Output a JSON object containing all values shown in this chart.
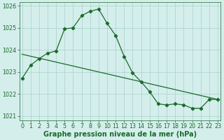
{
  "line1_x": [
    0,
    1,
    2,
    3,
    4,
    5,
    6,
    7,
    8,
    9,
    10,
    11,
    12,
    13,
    14,
    15,
    16,
    17,
    18,
    19,
    20,
    21,
    22,
    23
  ],
  "line1_y": [
    1022.7,
    1023.3,
    1023.6,
    1023.85,
    1023.95,
    1024.95,
    1025.0,
    1025.55,
    1025.75,
    1025.85,
    1025.2,
    1024.65,
    1023.7,
    1022.95,
    1022.55,
    1022.1,
    1021.55,
    1021.5,
    1021.55,
    1021.5,
    1021.35,
    1021.35,
    1021.75,
    1021.75
  ],
  "line2_x": [
    0,
    23
  ],
  "line2_y": [
    1023.8,
    1021.75
  ],
  "bg_color": "#d4eeec",
  "grid_color": "#b0d4d2",
  "line_color": "#1a6b2a",
  "xlabel": "Graphe pression niveau de la mer (hPa)",
  "xlim": [
    -0.3,
    23.3
  ],
  "ylim": [
    1020.8,
    1026.15
  ],
  "yticks": [
    1021,
    1022,
    1023,
    1024,
    1025,
    1026
  ],
  "xticks": [
    0,
    1,
    2,
    3,
    4,
    5,
    6,
    7,
    8,
    9,
    10,
    11,
    12,
    13,
    14,
    15,
    16,
    17,
    18,
    19,
    20,
    21,
    22,
    23
  ],
  "tick_fontsize": 5.8,
  "xlabel_fontsize": 7.0,
  "marker": "D",
  "markersize": 2.2,
  "linewidth": 0.9
}
